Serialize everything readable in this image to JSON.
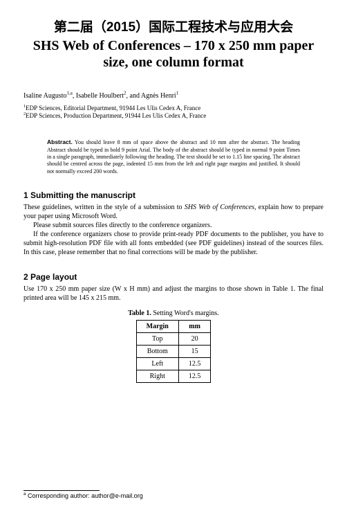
{
  "title": {
    "chinese": "第二届（2015）国际工程技术与应用大会",
    "english": "SHS Web of Conferences – 170 x 250 mm paper size, one column format"
  },
  "authors_html": "Isaline Augusto<sup>1,a</sup>, Isabelle Houlbert<sup>2</sup>, and Agnès Henri<sup>1</sup>",
  "affiliations": [
    "<sup>1</sup>EDP Sciences, Editorial Department, 91944 Les Ulis Cedex A, France",
    "<sup>2</sup>EDP Sciences, Production Department, 91944 Les Ulis Cedex A, France"
  ],
  "abstract": {
    "heading": "Abstract.",
    "text": "You should leave 8 mm of space above the abstract and 10 mm after the abstract. The heading Abstract should be typed in bold 9 point Arial. The body of the abstract should be typed in normal 9 point Times in a single paragraph, immediately following the heading. The text should be set to 1.15 line spacing. The abstract should be centred across the page, indented 15 mm from the left and right page margins and justified. It should not normally exceed 200 words."
  },
  "sections": {
    "s1": {
      "heading": "1 Submitting the manuscript",
      "p1_html": "These guidelines, written in the style of a submission to <em>SHS Web of Conferences</em>, explain how to prepare your paper using Microsoft Word.",
      "p2": "Please submit sources files directly to the conference organizers.",
      "p3": "If the conference organizers chose to provide print-ready PDF documents to the publisher, you have to submit high-resolution PDF file with all fonts embedded (see PDF guidelines) instead of the sources files. In this case, please remember that no final corrections will be made by the publisher."
    },
    "s2": {
      "heading": "2 Page layout",
      "p1": "Use 170 x 250 mm paper size (W x H mm) and adjust the margins to those shown in Table 1. The final printed area will be 145 x 215 mm."
    }
  },
  "table": {
    "caption_label": "Table 1.",
    "caption_text": "Setting Word's margins.",
    "head": {
      "c1": "Margin",
      "c2": "mm"
    },
    "rows": [
      {
        "c1": "Top",
        "c2": "20"
      },
      {
        "c1": "Bottom",
        "c2": "15"
      },
      {
        "c1": "Left",
        "c2": "12.5"
      },
      {
        "c1": "Right",
        "c2": "12.5"
      }
    ]
  },
  "footnote": {
    "marker": "a",
    "text": "Corresponding author: author@e-mail.org"
  },
  "style": {
    "background_color": "#ffffff",
    "text_color": "#000000",
    "title_fontsize_pt": 20,
    "body_fontsize_pt": 10,
    "abstract_fontsize_pt": 8,
    "footnote_fontsize_pt": 9,
    "table_border_color": "#000000"
  }
}
